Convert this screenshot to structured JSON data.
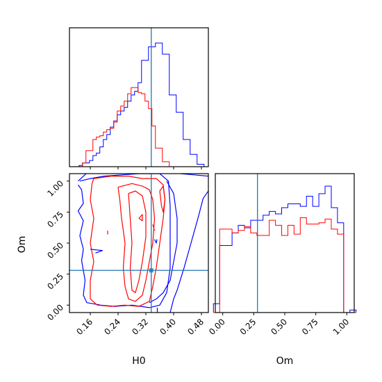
{
  "chart_data": [
    {
      "type": "histogram",
      "panel": "H0 marginal",
      "xlim": [
        0.1,
        0.5
      ],
      "bins": [
        0.1125,
        0.1225,
        0.1325,
        0.1425,
        0.1525,
        0.1625,
        0.1725,
        0.1825,
        0.1925,
        0.2025,
        0.2125,
        0.2225,
        0.2325,
        0.2425,
        0.2525,
        0.2625,
        0.2725,
        0.2825,
        0.2925,
        0.3025,
        0.3125,
        0.3225,
        0.3325,
        0.3425,
        0.3525,
        0.3625,
        0.3725,
        0.3825,
        0.3925,
        0.4025,
        0.4125,
        0.4225,
        0.4325,
        0.4425,
        0.4525,
        0.4625,
        0.4725,
        0.4825,
        0.4925
      ],
      "series": [
        {
          "color": "#0000ff",
          "values": [
            0,
            0,
            0.01,
            0.03,
            0.03,
            0.05,
            0.09,
            0.11,
            0.16,
            0.22,
            0.26,
            0.32,
            0.37,
            0.42,
            0.45,
            0.48,
            0.53,
            0.58,
            0.61,
            0.68,
            0.86,
            0.86,
            0.97,
            0.97,
            1.0,
            1.0,
            0.91,
            0.91,
            0.58,
            0.58,
            0.44,
            0.44,
            0.22,
            0.22,
            0.1,
            0.1,
            0.02,
            0.02,
            0
          ]
        },
        {
          "color": "#ff0000",
          "values": [
            0,
            0,
            0,
            0.03,
            0.13,
            0.13,
            0.22,
            0.24,
            0.25,
            0.28,
            0.3,
            0.31,
            0.36,
            0.45,
            0.49,
            0.53,
            0.59,
            0.64,
            0.64,
            0.6,
            0.59,
            0.53,
            0.47,
            0.33,
            0.15,
            0.15,
            0.04,
            0.04,
            0,
            0,
            0,
            0,
            0,
            0,
            0,
            0,
            0,
            0,
            0
          ]
        }
      ],
      "truth": 0.3356
    },
    {
      "type": "histogram",
      "panel": "Om marginal",
      "xlim": [
        -0.06,
        1.06
      ],
      "bins": [
        -0.05,
        0,
        0.05,
        0.1,
        0.15,
        0.2,
        0.25,
        0.3,
        0.35,
        0.4,
        0.45,
        0.5,
        0.55,
        0.6,
        0.65,
        0.7,
        0.75,
        0.8,
        0.85,
        0.9,
        0.95,
        1.0,
        1.05
      ],
      "series": [
        {
          "color": "#0000ff",
          "values": [
            0.07,
            0.53,
            0.53,
            0.63,
            0.69,
            0.67,
            0.73,
            0.73,
            0.77,
            0.8,
            0.78,
            0.83,
            0.86,
            0.86,
            0.84,
            0.92,
            0.84,
            0.94,
            1.0,
            0.83,
            0.71,
            0.0,
            0.02
          ]
        },
        {
          "color": "#ff0000",
          "values": [
            0,
            0.66,
            0.66,
            0.63,
            0.65,
            0.68,
            0.63,
            0.61,
            0.61,
            0.73,
            0.69,
            0.61,
            0.69,
            0.62,
            0.75,
            0.7,
            0.7,
            0.71,
            0.74,
            0.66,
            0.62,
            0,
            0
          ]
        }
      ],
      "truth": 0.28
    },
    {
      "type": "contour",
      "panel": "H0 vs Om",
      "xlim": [
        0.1,
        0.5
      ],
      "ylim": [
        -0.06,
        1.06
      ],
      "truth": [
        0.3356,
        0.28
      ],
      "series": [
        {
          "color": "#0000ff",
          "paths": [
            [
              [
                0.125,
                1.0
              ],
              [
                0.152,
                1.07
              ],
              [
                0.2,
                1.09
              ],
              [
                0.26,
                1.09
              ],
              [
                0.33,
                1.06
              ],
              [
                0.38,
                1.07
              ],
              [
                0.42,
                1.06
              ],
              [
                0.46,
                1.05
              ],
              [
                0.5,
                1.04
              ]
            ],
            [
              [
                0.5,
                0.92
              ],
              [
                0.485,
                0.86
              ],
              [
                0.47,
                0.7
              ],
              [
                0.45,
                0.5
              ],
              [
                0.43,
                0.3
              ],
              [
                0.41,
                0.12
              ],
              [
                0.4,
                0.05
              ],
              [
                0.39,
                -0.06
              ]
            ],
            [
              [
                0.125,
                0.97
              ],
              [
                0.135,
                0.93
              ],
              [
                0.14,
                0.82
              ],
              [
                0.125,
                0.76
              ],
              [
                0.14,
                0.68
              ],
              [
                0.13,
                0.56
              ],
              [
                0.14,
                0.45
              ],
              [
                0.135,
                0.36
              ],
              [
                0.145,
                0.2
              ],
              [
                0.14,
                0.08
              ],
              [
                0.15,
                0.02
              ],
              [
                0.19,
                0.0
              ],
              [
                0.23,
                -0.01
              ],
              [
                0.28,
                0.0
              ],
              [
                0.33,
                -0.02
              ],
              [
                0.36,
                0.0
              ],
              [
                0.38,
                0.1
              ],
              [
                0.39,
                0.3
              ],
              [
                0.39,
                0.55
              ],
              [
                0.39,
                0.8
              ],
              [
                0.385,
                1.0
              ],
              [
                0.36,
                1.06
              ],
              [
                0.3,
                1.06
              ],
              [
                0.25,
                1.05
              ],
              [
                0.2,
                1.04
              ],
              [
                0.16,
                1.02
              ],
              [
                0.13,
                1.0
              ]
            ],
            [
              [
                0.38,
                1.0
              ],
              [
                0.4,
                0.9
              ],
              [
                0.41,
                0.7
              ],
              [
                0.41,
                0.5
              ],
              [
                0.4,
                0.35
              ],
              [
                0.39,
                0.2
              ],
              [
                0.37,
                0.1
              ],
              [
                0.35,
                0.05
              ],
              [
                0.33,
                0.02
              ]
            ],
            [
              [
                0.353,
                -0.02
              ],
              [
                0.353,
                -0.06
              ]
            ],
            [
              [
                0.16,
                0.45
              ],
              [
                0.195,
                0.44
              ],
              [
                0.175,
                0.42
              ]
            ],
            [
              [
                0.345,
                0.53
              ],
              [
                0.35,
                0.5
              ],
              [
                0.352,
                0.53
              ]
            ]
          ]
        },
        {
          "color": "#ff0000",
          "paths": [
            [
              [
                0.17,
                1.02
              ],
              [
                0.22,
                1.04
              ],
              [
                0.27,
                1.04
              ],
              [
                0.31,
                1.02
              ],
              [
                0.35,
                1.02
              ],
              [
                0.37,
                0.97
              ],
              [
                0.375,
                0.85
              ],
              [
                0.37,
                0.7
              ],
              [
                0.36,
                0.5
              ],
              [
                0.35,
                0.3
              ],
              [
                0.34,
                0.15
              ],
              [
                0.33,
                0.03
              ],
              [
                0.3,
                -0.01
              ],
              [
                0.26,
                0.0
              ],
              [
                0.22,
                -0.01
              ],
              [
                0.18,
                0.0
              ],
              [
                0.16,
                0.05
              ],
              [
                0.16,
                0.2
              ],
              [
                0.17,
                0.35
              ],
              [
                0.16,
                0.5
              ],
              [
                0.17,
                0.7
              ],
              [
                0.16,
                0.85
              ],
              [
                0.165,
                0.98
              ],
              [
                0.17,
                1.02
              ]
            ],
            [
              [
                0.24,
                0.95
              ],
              [
                0.28,
                0.98
              ],
              [
                0.31,
                0.96
              ],
              [
                0.33,
                0.93
              ],
              [
                0.34,
                0.85
              ],
              [
                0.345,
                0.7
              ],
              [
                0.34,
                0.5
              ],
              [
                0.33,
                0.35
              ],
              [
                0.32,
                0.2
              ],
              [
                0.31,
                0.08
              ],
              [
                0.29,
                0.03
              ],
              [
                0.27,
                0.05
              ],
              [
                0.26,
                0.15
              ],
              [
                0.255,
                0.3
              ],
              [
                0.26,
                0.5
              ],
              [
                0.25,
                0.7
              ],
              [
                0.245,
                0.85
              ],
              [
                0.24,
                0.95
              ]
            ],
            [
              [
                0.27,
                0.9
              ],
              [
                0.29,
                0.92
              ],
              [
                0.31,
                0.88
              ],
              [
                0.32,
                0.75
              ],
              [
                0.32,
                0.55
              ],
              [
                0.31,
                0.35
              ],
              [
                0.3,
                0.2
              ],
              [
                0.29,
                0.1
              ],
              [
                0.28,
                0.12
              ],
              [
                0.275,
                0.3
              ],
              [
                0.28,
                0.5
              ],
              [
                0.275,
                0.7
              ],
              [
                0.27,
                0.9
              ]
            ],
            [
              [
                0.36,
                0.92
              ],
              [
                0.37,
                0.96
              ],
              [
                0.375,
                0.85
              ],
              [
                0.37,
                0.75
              ],
              [
                0.365,
                0.8
              ],
              [
                0.36,
                0.92
              ]
            ],
            [
              [
                0.3,
                0.7
              ],
              [
                0.31,
                0.73
              ],
              [
                0.31,
                0.68
              ],
              [
                0.3,
                0.7
              ]
            ],
            [
              [
                0.21,
                0.57
              ],
              [
                0.21,
                0.6
              ]
            ],
            [
              [
                0.34,
                0.65
              ],
              [
                0.345,
                0.6
              ]
            ]
          ]
        }
      ]
    }
  ],
  "axes": {
    "h0": {
      "label": "H0",
      "ticks": [
        "0.16",
        "0.24",
        "0.32",
        "0.40",
        "0.48"
      ]
    },
    "om": {
      "label": "Om",
      "ticks": [
        "0.00",
        "0.25",
        "0.50",
        "0.75",
        "1.00"
      ]
    }
  }
}
